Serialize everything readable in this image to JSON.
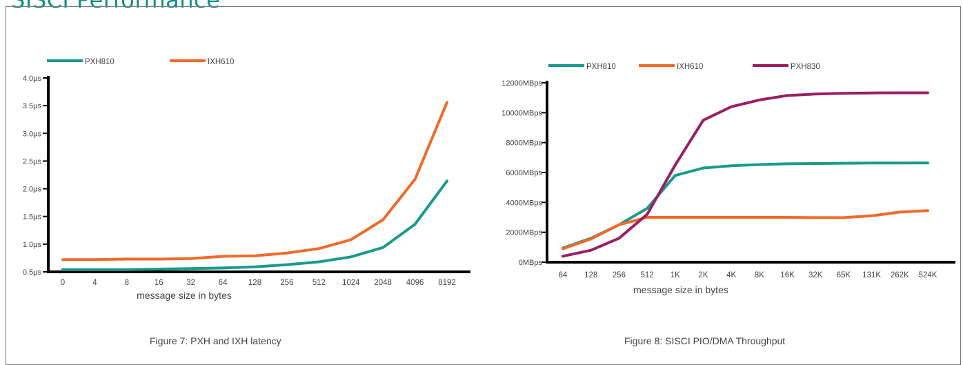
{
  "page": {
    "heading": "SISCI Performance"
  },
  "chart_data": [
    {
      "type": "line",
      "caption": "Figure 7: PXH and IXH latency",
      "xlabel": "message size in bytes",
      "ylabel": "",
      "categories": [
        "0",
        "4",
        "8",
        "16",
        "32",
        "64",
        "128",
        "256",
        "512",
        "1024",
        "2048",
        "4096",
        "8192"
      ],
      "y_ticks": [
        "0.5µs",
        "1.0µs",
        "1.5µs",
        "2.0µs",
        "2.5µs",
        "3.0µs",
        "3.5µs",
        "4.0µs"
      ],
      "ylim": [
        0.5,
        4.0
      ],
      "y_unit": "µs",
      "grid": false,
      "legend_position": "top-left",
      "series": [
        {
          "name": "PXH810",
          "color": "#1a9a8e",
          "values": [
            0.54,
            0.54,
            0.54,
            0.55,
            0.56,
            0.57,
            0.59,
            0.63,
            0.68,
            0.77,
            0.94,
            1.36,
            2.14
          ]
        },
        {
          "name": "IXH610",
          "color": "#f06a2a",
          "values": [
            0.72,
            0.72,
            0.73,
            0.73,
            0.74,
            0.78,
            0.79,
            0.84,
            0.92,
            1.08,
            1.44,
            2.17,
            3.56
          ]
        }
      ]
    },
    {
      "type": "line",
      "caption": "Figure 8: SISCI PIO/DMA Throughput",
      "xlabel": "message size in bytes",
      "ylabel": "",
      "categories": [
        "64",
        "128",
        "256",
        "512",
        "1K",
        "2K",
        "4K",
        "8K",
        "16K",
        "32K",
        "65K",
        "131K",
        "262K",
        "524K"
      ],
      "y_ticks": [
        "0MBps",
        "2000MBps",
        "4000MBps",
        "6000MBps",
        "8000MBps",
        "10000MBps",
        "12000MBps"
      ],
      "ylim": [
        0,
        12000
      ],
      "y_unit": "MBps",
      "grid": false,
      "legend_position": "top-left",
      "series": [
        {
          "name": "PXH810",
          "color": "#1a9a8e",
          "values": [
            950,
            1600,
            2500,
            3600,
            5800,
            6300,
            6450,
            6530,
            6580,
            6600,
            6620,
            6630,
            6630,
            6640
          ]
        },
        {
          "name": "IXH610",
          "color": "#f06a2a",
          "values": [
            900,
            1550,
            2500,
            3000,
            3000,
            3000,
            3000,
            3000,
            3000,
            2980,
            2980,
            3100,
            3350,
            3450
          ]
        },
        {
          "name": "PXH830",
          "color": "#9a1f63",
          "values": [
            400,
            800,
            1600,
            3200,
            6500,
            9500,
            10400,
            10850,
            11150,
            11250,
            11300,
            11320,
            11330,
            11330
          ]
        }
      ]
    }
  ]
}
